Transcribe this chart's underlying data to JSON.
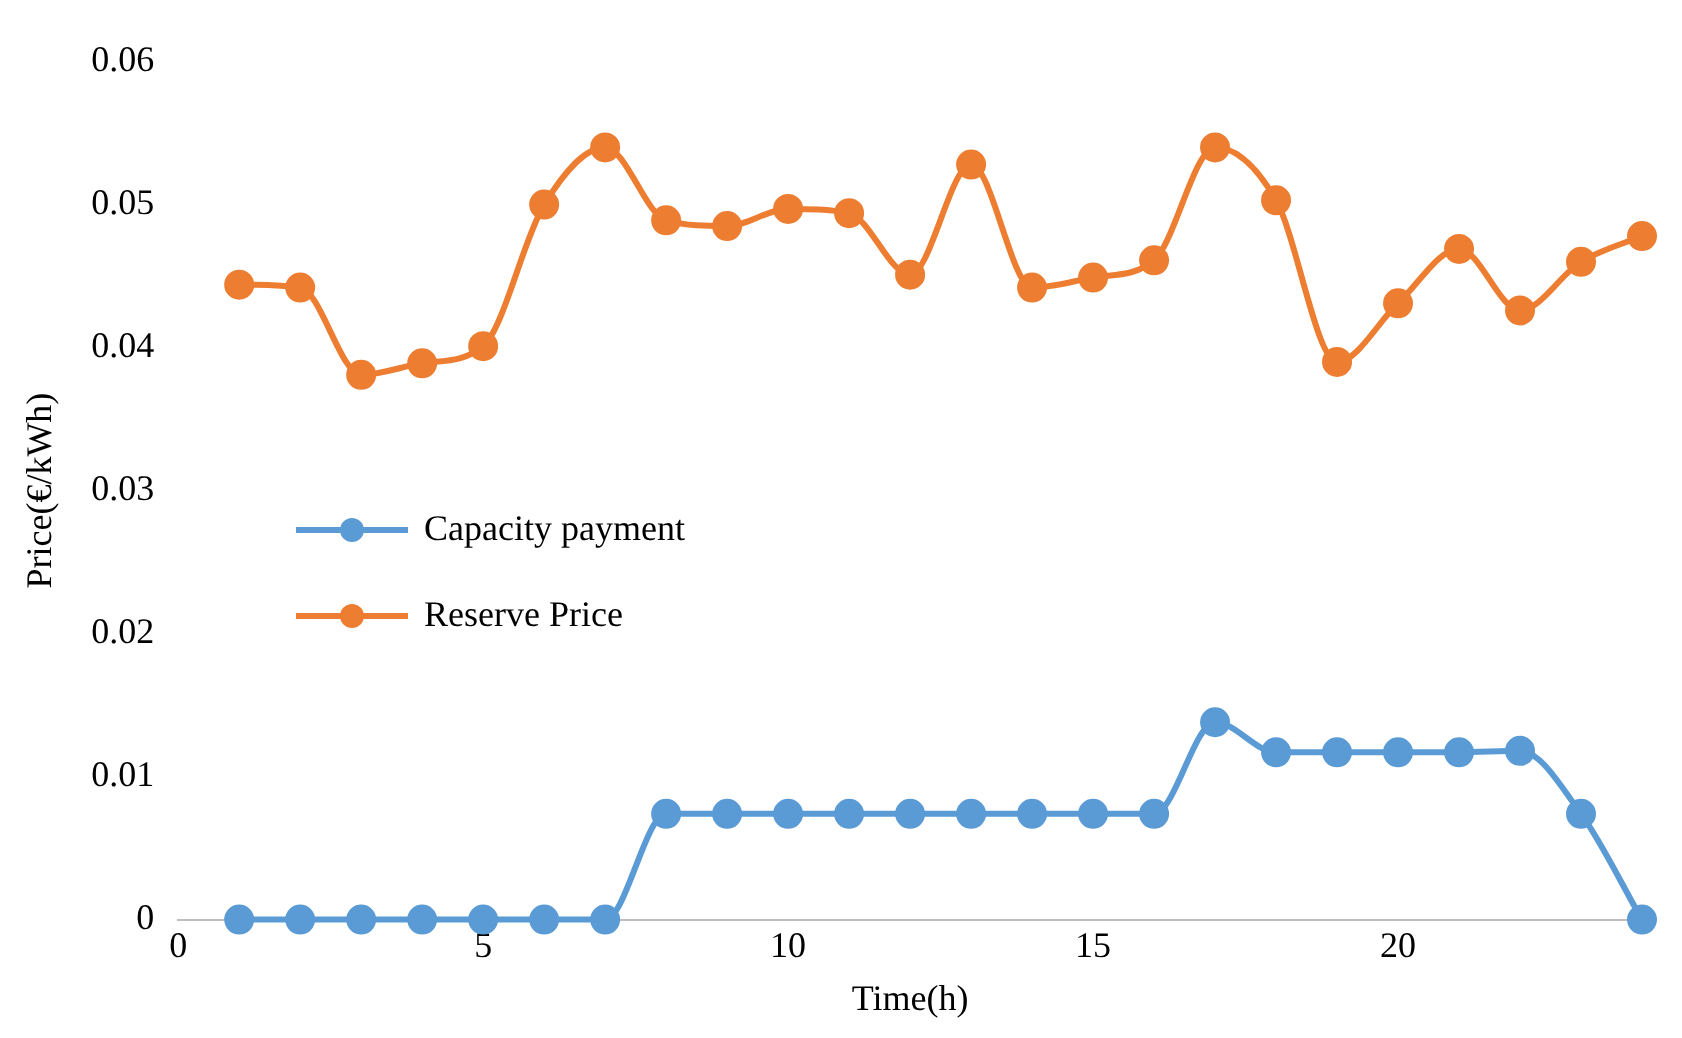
{
  "chart_data": {
    "type": "line",
    "xlabel": "Time(h)",
    "ylabel": "Price(€/kWh)",
    "x": [
      1,
      2,
      3,
      4,
      5,
      6,
      7,
      8,
      9,
      10,
      11,
      12,
      13,
      14,
      15,
      16,
      17,
      18,
      19,
      20,
      21,
      22,
      23,
      24
    ],
    "series": [
      {
        "name": "Capacity payment",
        "color": "#5b9bd5",
        "values": [
          0,
          0,
          0,
          0,
          0,
          0,
          0,
          0.0074,
          0.0074,
          0.0074,
          0.0074,
          0.0074,
          0.0074,
          0.0074,
          0.0074,
          0.0074,
          0.0138,
          0.0117,
          0.0117,
          0.0117,
          0.0117,
          0.0118,
          0.0074,
          0
        ]
      },
      {
        "name": "Reserve Price",
        "color": "#ed7d31",
        "values": [
          0.0444,
          0.0442,
          0.0381,
          0.0389,
          0.0401,
          0.05,
          0.054,
          0.0489,
          0.0485,
          0.0497,
          0.0494,
          0.0451,
          0.0528,
          0.0442,
          0.0449,
          0.0461,
          0.054,
          0.0503,
          0.039,
          0.0431,
          0.0469,
          0.0426,
          0.046,
          0.0478
        ]
      }
    ],
    "xlim": [
      0,
      24
    ],
    "xticks": [
      0,
      5,
      10,
      15,
      20
    ],
    "ylim": [
      0,
      0.06
    ],
    "yticks": [
      0,
      0.01,
      0.02,
      0.03,
      0.04,
      0.05,
      0.06
    ],
    "grid": false,
    "legend": "left",
    "marker": "circle",
    "line_style": "solid"
  }
}
